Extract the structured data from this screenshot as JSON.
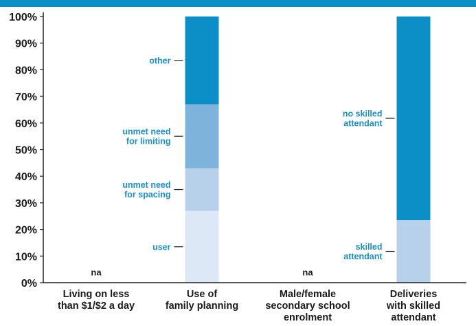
{
  "chart_data": {
    "type": "bar",
    "stacked": true,
    "ylim": [
      0,
      100
    ],
    "y_ticks": [
      "0%",
      "10%",
      "20%",
      "30%",
      "40%",
      "50%",
      "60%",
      "70%",
      "80%",
      "90%",
      "100%"
    ],
    "categories": [
      {
        "lines": [
          "Living on less",
          "than $1/$2 a day"
        ],
        "na": "na",
        "segments": []
      },
      {
        "lines": [
          "Use of",
          "family planning"
        ],
        "segments": [
          {
            "label": [
              "user"
            ],
            "value": 27,
            "color": "#dce8f5"
          },
          {
            "label": [
              "unmet need",
              "for spacing"
            ],
            "value": 16,
            "color": "#b8d1ea"
          },
          {
            "label": [
              "unmet need",
              "for limiting"
            ],
            "value": 24,
            "color": "#7eb3dc"
          },
          {
            "label": [
              "other"
            ],
            "value": 33,
            "color": "#0c8ec7"
          }
        ]
      },
      {
        "lines": [
          "Male/female",
          "secondary school",
          "enrolment"
        ],
        "na": "na",
        "segments": []
      },
      {
        "lines": [
          "Deliveries",
          "with skilled",
          "attendant"
        ],
        "segments": [
          {
            "label": [
              "skilled",
              "attendant"
            ],
            "value": 23.5,
            "color": "#b8d1ea"
          },
          {
            "label": [
              "no skilled",
              "attendant"
            ],
            "value": 76.5,
            "color": "#0c8ec7"
          }
        ]
      }
    ],
    "colors": {
      "header": "#0c8ec7",
      "label": "#1b8fcb",
      "axis": "#222222",
      "text": "#1a1a1a"
    }
  }
}
